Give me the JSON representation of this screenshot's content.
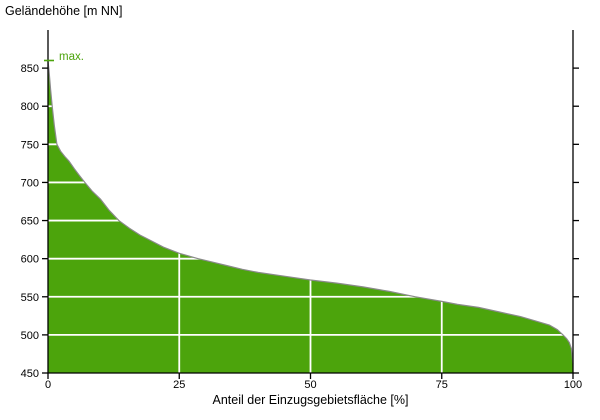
{
  "colors": {
    "area_fill": "#4ca40c",
    "area_outline": "#8a8a8a",
    "gridline": "#ffffff",
    "axis": "#000000",
    "accent_green": "#4ca40c",
    "background": "#ffffff"
  },
  "chart_data": {
    "type": "area",
    "title": "Geländehöhe [m NN]",
    "xlabel": "Anteil der Einzugsgebietsfläche [%]",
    "ylabel": "",
    "max_label": "max.",
    "xlim": [
      0,
      100
    ],
    "ylim": [
      450,
      900
    ],
    "xticks": [
      0,
      25,
      50,
      75,
      100
    ],
    "yticks": [
      450,
      500,
      550,
      600,
      650,
      700,
      750,
      800,
      850
    ],
    "grid": true,
    "legend": false,
    "max_elevation": 860,
    "min_elevation": 462,
    "points": [
      [
        0,
        859
      ],
      [
        0.2,
        847
      ],
      [
        0.5,
        822
      ],
      [
        0.8,
        800
      ],
      [
        1.2,
        775
      ],
      [
        1.7,
        750
      ],
      [
        2.4,
        741
      ],
      [
        3.2,
        734
      ],
      [
        4,
        728
      ],
      [
        5,
        718
      ],
      [
        6,
        709
      ],
      [
        7,
        700
      ],
      [
        8.5,
        688
      ],
      [
        10,
        678
      ],
      [
        11.7,
        663
      ],
      [
        13.5,
        650
      ],
      [
        15.5,
        640
      ],
      [
        17.5,
        631
      ],
      [
        19.5,
        624
      ],
      [
        22,
        615
      ],
      [
        25,
        607
      ],
      [
        28.6,
        600
      ],
      [
        31,
        596
      ],
      [
        34,
        591
      ],
      [
        37,
        586
      ],
      [
        40,
        582
      ],
      [
        45,
        577
      ],
      [
        50,
        572
      ],
      [
        55,
        568
      ],
      [
        60,
        563
      ],
      [
        65,
        557
      ],
      [
        70,
        550
      ],
      [
        75,
        544
      ],
      [
        78,
        540
      ],
      [
        82,
        536
      ],
      [
        86,
        530
      ],
      [
        90,
        524
      ],
      [
        93,
        518
      ],
      [
        95.5,
        513
      ],
      [
        97,
        507
      ],
      [
        98.1,
        500
      ],
      [
        98.8,
        495
      ],
      [
        99.3,
        490
      ],
      [
        99.7,
        482
      ],
      [
        100,
        462
      ]
    ]
  }
}
